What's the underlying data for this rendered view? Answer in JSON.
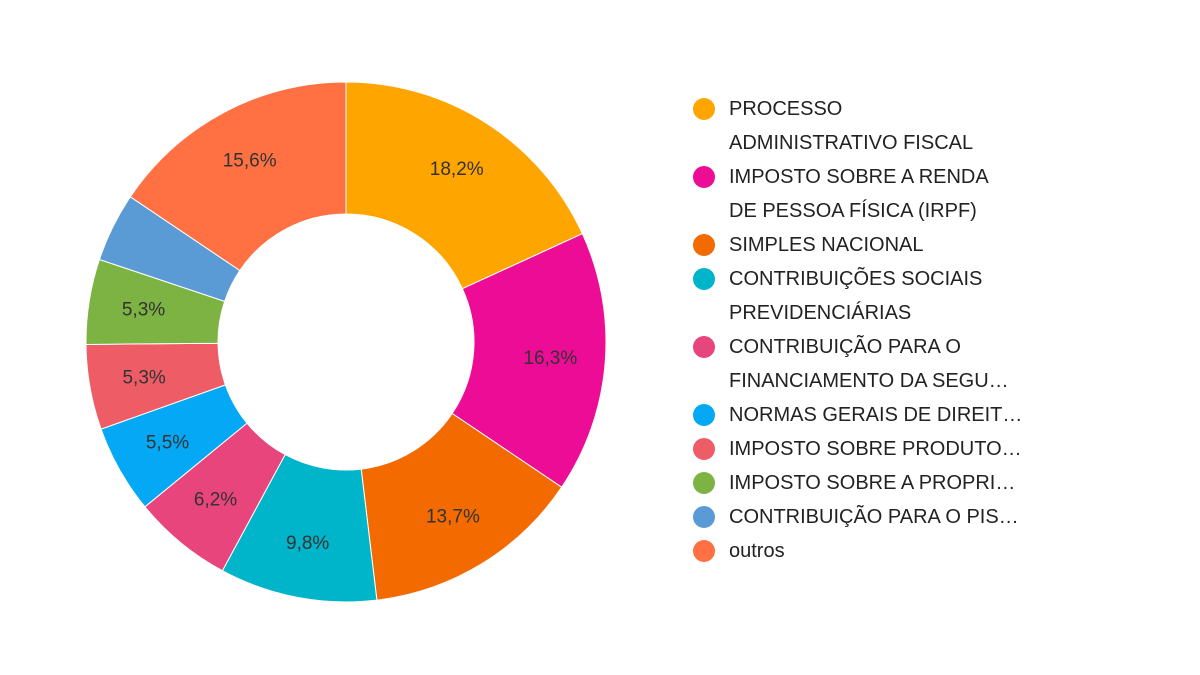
{
  "chart_data": {
    "type": "pie",
    "donut": true,
    "legend_position": "right",
    "slices": [
      {
        "label": "PROCESSO ADMINISTRATIVO FISCAL",
        "legend_lines": [
          "PROCESSO",
          "ADMINISTRATIVO FISCAL"
        ],
        "value": 18.2,
        "display": "18,2%",
        "color": "#FFA500",
        "label_color": "#333333"
      },
      {
        "label": "IMPOSTO SOBRE A RENDA DE PESSOA FÍSICA (IRPF)",
        "legend_lines": [
          "IMPOSTO SOBRE A RENDA",
          "DE PESSOA FÍSICA (IRPF)"
        ],
        "value": 16.3,
        "display": "16,3%",
        "color": "#EC0C96",
        "label_color": "#ffffff"
      },
      {
        "label": "SIMPLES NACIONAL",
        "legend_lines": [
          "SIMPLES NACIONAL"
        ],
        "value": 13.7,
        "display": "13,7%",
        "color": "#F26A00",
        "label_color": "#333333"
      },
      {
        "label": "CONTRIBUIÇÕES SOCIAIS PREVIDENCIÁRIAS",
        "legend_lines": [
          "CONTRIBUIÇÕES SOCIAIS",
          "PREVIDENCIÁRIAS"
        ],
        "value": 9.8,
        "display": "9,8%",
        "color": "#00B4C9",
        "label_color": "#333333"
      },
      {
        "label": "CONTRIBUIÇÃO PARA O FINANCIAMENTO DA SEGU…",
        "legend_lines": [
          "CONTRIBUIÇÃO PARA O",
          "FINANCIAMENTO DA SEGU…"
        ],
        "value": 6.2,
        "display": "6,2%",
        "color": "#E8457C",
        "label_color": "#333333"
      },
      {
        "label": "NORMAS GERAIS DE DIREIT…",
        "legend_lines": [
          "NORMAS GERAIS DE DIREIT…"
        ],
        "value": 5.5,
        "display": "5,5%",
        "color": "#04A8F4",
        "label_color": "#333333"
      },
      {
        "label": "IMPOSTO SOBRE PRODUTO…",
        "legend_lines": [
          "IMPOSTO SOBRE PRODUTO…"
        ],
        "value": 5.3,
        "display": "5,3%",
        "color": "#EE5C66",
        "label_color": "#333333"
      },
      {
        "label": "IMPOSTO SOBRE A PROPRI…",
        "legend_lines": [
          "IMPOSTO SOBRE A PROPRI…"
        ],
        "value": 5.3,
        "display": "5,3%",
        "color": "#7CB342",
        "label_color": "#333333"
      },
      {
        "label": "CONTRIBUIÇÃO PARA O PIS…",
        "legend_lines": [
          "CONTRIBUIÇÃO PARA O PIS…"
        ],
        "value": 4.3,
        "display": "",
        "color": "#5B9BD5",
        "label_color": "#333333"
      },
      {
        "label": "outros",
        "legend_lines": [
          "outros"
        ],
        "value": 15.6,
        "display": "15,6%",
        "color": "#FF7043",
        "label_color": "#333333"
      }
    ]
  }
}
